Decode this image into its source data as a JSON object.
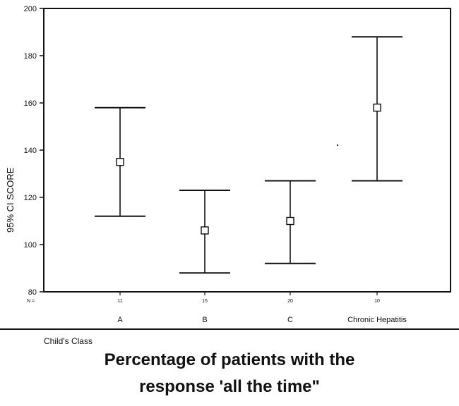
{
  "chart_data": {
    "type": "errorbar",
    "ylabel": "95% CI SCORE",
    "xlabel": "Child's Class",
    "ylim": [
      80,
      200
    ],
    "yticks": [
      80,
      100,
      120,
      140,
      160,
      180,
      200
    ],
    "n_label": "N =",
    "categories": [
      "A",
      "B",
      "C",
      "Chronic Hepatitis"
    ],
    "n": [
      "11",
      "15",
      "20",
      "10"
    ],
    "mean": [
      135,
      106,
      110,
      158
    ],
    "lower": [
      112,
      88,
      92,
      127
    ],
    "upper": [
      158,
      123,
      127,
      188
    ],
    "grid": false,
    "legend": "none"
  },
  "caption": {
    "line1": "Percentage of patients with the",
    "line2": "response 'all the time\""
  }
}
